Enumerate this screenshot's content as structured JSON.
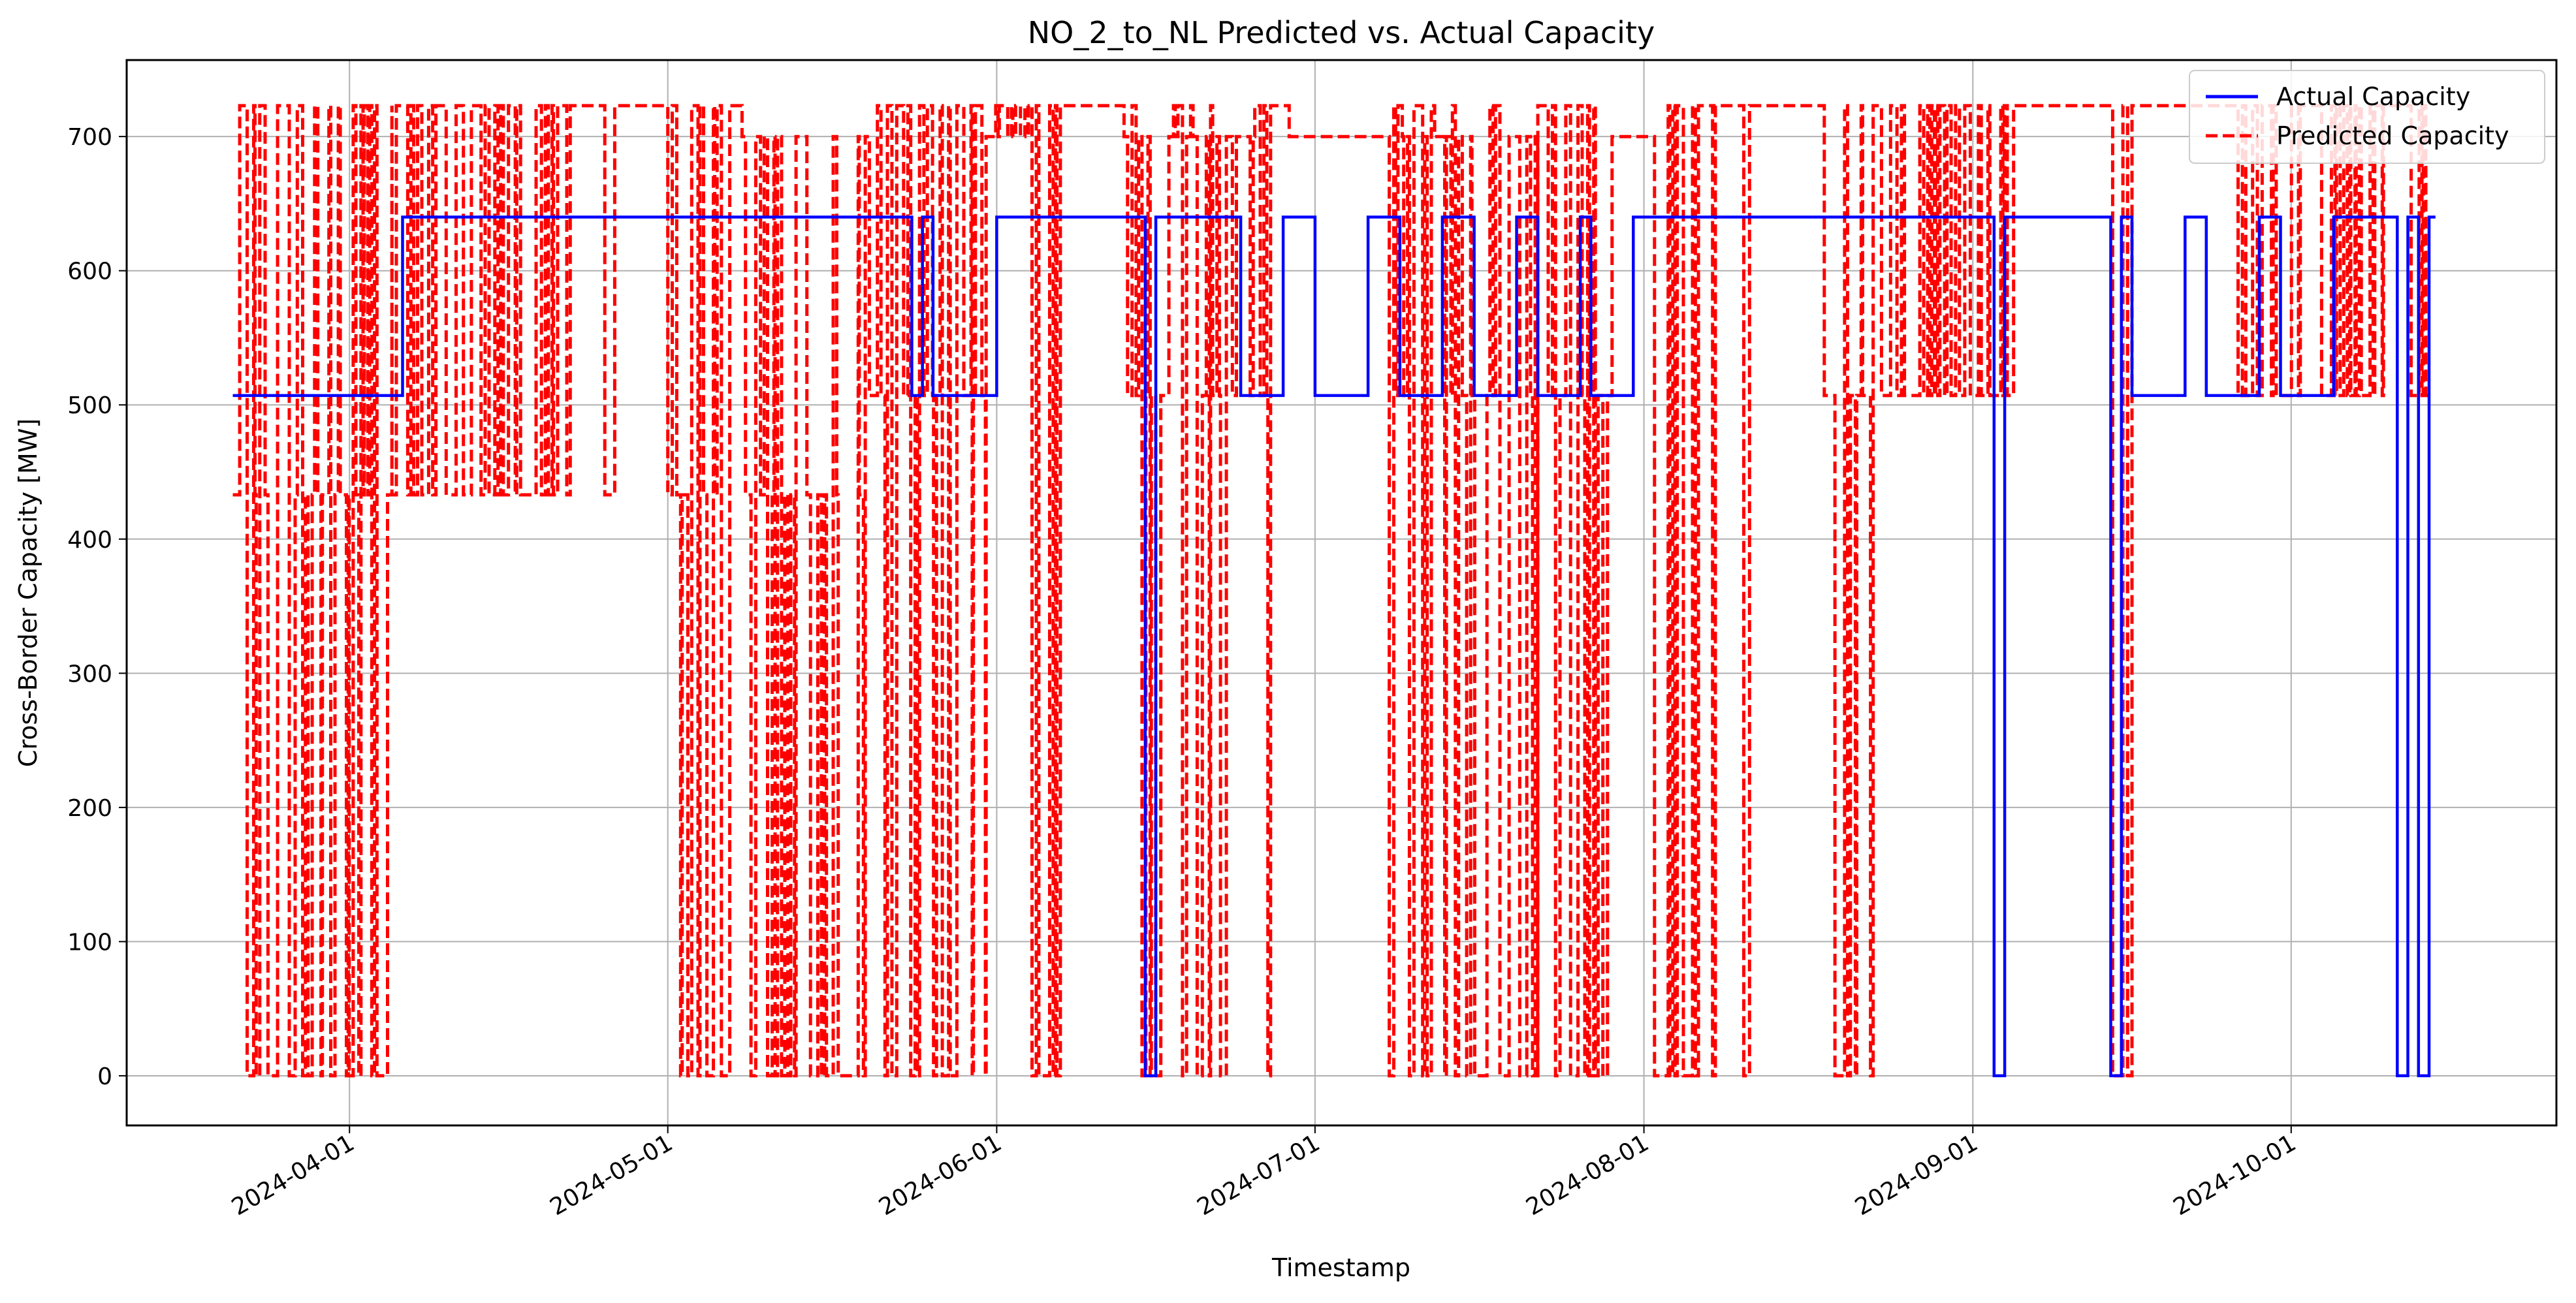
{
  "chart_data": {
    "type": "line",
    "title": "NO_2_to_NL Predicted vs. Actual Capacity",
    "xlabel": "Timestamp",
    "ylabel": "Cross-Border Capacity [MW]",
    "xlim": [
      "2024-03-11",
      "2024-10-26"
    ],
    "ylim": [
      -37,
      757
    ],
    "yticks": [
      0,
      100,
      200,
      300,
      400,
      500,
      600,
      700
    ],
    "xticks": [
      "2024-04-01",
      "2024-05-01",
      "2024-06-01",
      "2024-07-01",
      "2024-08-01",
      "2024-09-01",
      "2024-10-01"
    ],
    "grid": true,
    "legend_position": "top-right",
    "series": [
      {
        "name": "Actual Capacity",
        "color": "#0000ff",
        "style": "solid",
        "step": true,
        "points": [
          [
            "2024-03-21",
            507
          ],
          [
            "2024-04-06",
            640
          ],
          [
            "2024-05-24",
            507
          ],
          [
            "2024-05-25",
            640
          ],
          [
            "2024-05-26",
            507
          ],
          [
            "2024-06-01",
            640
          ],
          [
            "2024-06-15",
            0
          ],
          [
            "2024-06-16",
            640
          ],
          [
            "2024-06-24",
            507
          ],
          [
            "2024-06-28",
            640
          ],
          [
            "2024-07-01",
            507
          ],
          [
            "2024-07-06",
            640
          ],
          [
            "2024-07-09",
            507
          ],
          [
            "2024-07-13",
            640
          ],
          [
            "2024-07-16",
            507
          ],
          [
            "2024-07-20",
            640
          ],
          [
            "2024-07-22",
            507
          ],
          [
            "2024-07-26",
            640
          ],
          [
            "2024-07-27",
            507
          ],
          [
            "2024-07-31",
            640
          ],
          [
            "2024-09-03",
            0
          ],
          [
            "2024-09-04",
            640
          ],
          [
            "2024-09-14",
            0
          ],
          [
            "2024-09-15",
            640
          ],
          [
            "2024-09-16",
            507
          ],
          [
            "2024-09-21",
            640
          ],
          [
            "2024-09-23",
            507
          ],
          [
            "2024-09-28",
            640
          ],
          [
            "2024-09-30",
            507
          ],
          [
            "2024-10-05",
            640
          ],
          [
            "2024-10-11",
            0
          ],
          [
            "2024-10-12",
            640
          ],
          [
            "2024-10-13",
            0
          ],
          [
            "2024-10-14",
            640
          ]
        ]
      },
      {
        "name": "Predicted Capacity",
        "color": "#ff0000",
        "style": "dashed",
        "segments": [
          {
            "start": "2024-03-21",
            "end": "2024-04-05",
            "levels": [
              0,
              433,
              723
            ]
          },
          {
            "start": "2024-04-05",
            "end": "2024-04-26",
            "levels": [
              433,
              723
            ]
          },
          {
            "start": "2024-04-26",
            "end": "2024-05-01",
            "levels": [
              723
            ]
          },
          {
            "start": "2024-05-01",
            "end": "2024-05-08",
            "levels": [
              0,
              433,
              723
            ]
          },
          {
            "start": "2024-05-08",
            "end": "2024-05-20",
            "levels": [
              0,
              433,
              700
            ]
          },
          {
            "start": "2024-05-20",
            "end": "2024-05-31",
            "levels": [
              0,
              507,
              723
            ]
          },
          {
            "start": "2024-05-31",
            "end": "2024-06-04",
            "levels": [
              723,
              700
            ]
          },
          {
            "start": "2024-06-04",
            "end": "2024-06-07",
            "levels": [
              0,
              723
            ]
          },
          {
            "start": "2024-06-07",
            "end": "2024-06-13",
            "levels": [
              723
            ]
          },
          {
            "start": "2024-06-13",
            "end": "2024-06-29",
            "levels": [
              0,
              507,
              700,
              723
            ]
          },
          {
            "start": "2024-06-29",
            "end": "2024-07-08",
            "levels": [
              700
            ]
          },
          {
            "start": "2024-07-08",
            "end": "2024-07-22",
            "levels": [
              0,
              507,
              700,
              723
            ]
          },
          {
            "start": "2024-07-22",
            "end": "2024-07-29",
            "levels": [
              0,
              507,
              723
            ]
          },
          {
            "start": "2024-07-29",
            "end": "2024-08-02",
            "levels": [
              700
            ]
          },
          {
            "start": "2024-08-02",
            "end": "2024-08-11",
            "levels": [
              0,
              723
            ]
          },
          {
            "start": "2024-08-11",
            "end": "2024-08-18",
            "levels": [
              723
            ]
          },
          {
            "start": "2024-08-18",
            "end": "2024-08-23",
            "levels": [
              0,
              507,
              723
            ]
          },
          {
            "start": "2024-08-23",
            "end": "2024-09-05",
            "levels": [
              507,
              723
            ]
          },
          {
            "start": "2024-09-05",
            "end": "2024-09-14",
            "levels": [
              723
            ]
          },
          {
            "start": "2024-09-14",
            "end": "2024-09-16",
            "levels": [
              0,
              723
            ]
          },
          {
            "start": "2024-09-16",
            "end": "2024-09-26",
            "levels": [
              723
            ]
          },
          {
            "start": "2024-09-26",
            "end": "2024-10-05",
            "levels": [
              507,
              723
            ]
          },
          {
            "start": "2024-10-05",
            "end": "2024-10-14",
            "levels": [
              507,
              723
            ]
          }
        ]
      }
    ]
  }
}
